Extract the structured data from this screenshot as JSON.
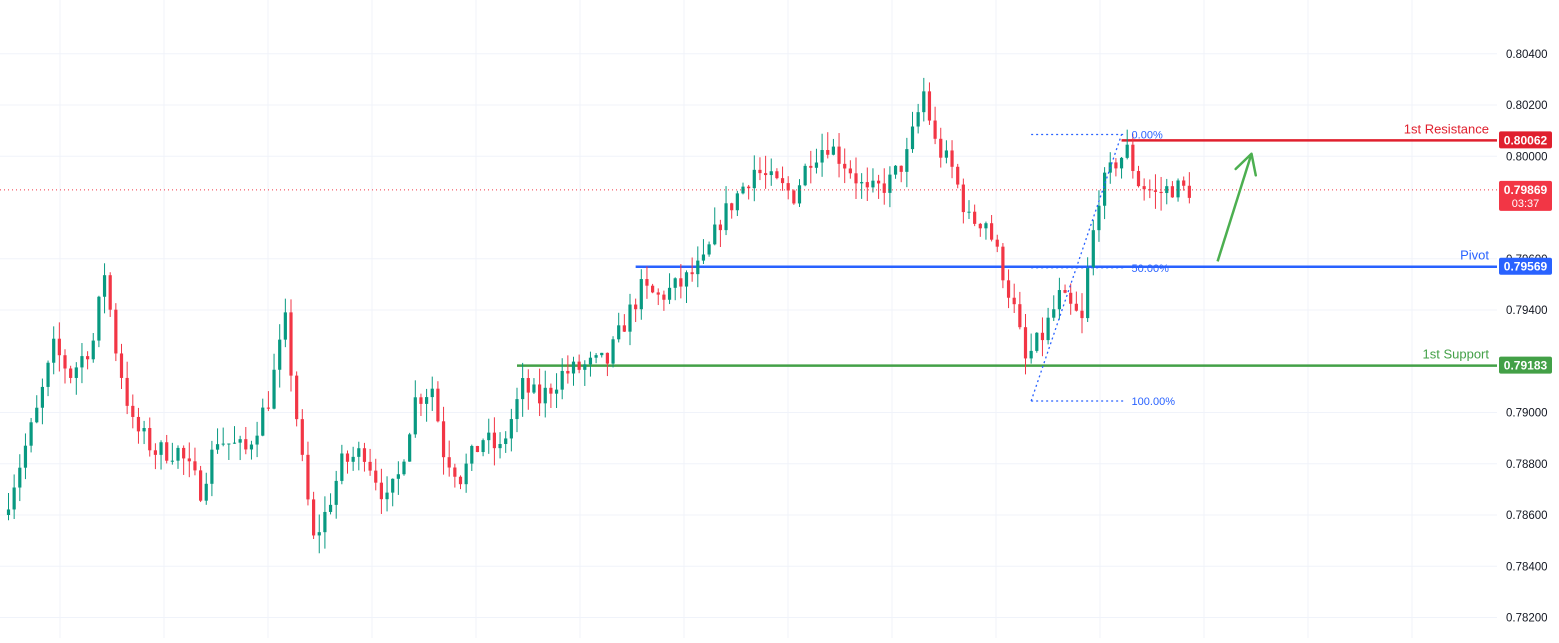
{
  "chart_data": {
    "type": "candlestick",
    "y_axis": {
      "position": "right",
      "ylim": [
        0.7812,
        0.8061
      ],
      "ticks": [
        0.804,
        0.802,
        0.8,
        0.796,
        0.794,
        0.79,
        0.788,
        0.786,
        0.784,
        0.782
      ],
      "tick_labels": [
        "0.80400",
        "0.80200",
        "0.80000",
        "0.79600",
        "0.79400",
        "0.79000",
        "0.78800",
        "0.78600",
        "0.78400",
        "0.78200"
      ]
    },
    "grid": true,
    "current_price": {
      "value": 0.79869,
      "label": "0.79869",
      "countdown": "03:37",
      "color": "#f23645"
    },
    "levels": [
      {
        "name": "1st Resistance",
        "value": 0.80062,
        "label": "0.80062",
        "color": "#e0202e",
        "start_index": 197
      },
      {
        "name": "Pivot",
        "value": 0.79569,
        "label": "0.79569",
        "color": "#2962ff",
        "start_index": 111
      },
      {
        "name": "1st Support",
        "value": 0.79183,
        "label": "0.79183",
        "color": "#43a047",
        "start_index": 90
      }
    ],
    "fibonacci": [
      {
        "label": "0.00%",
        "value": 0.80085
      },
      {
        "label": "50.00%",
        "value": 0.79565
      },
      {
        "label": "100.00%",
        "value": 0.79045
      }
    ],
    "fib_swing": {
      "low_index": 181,
      "low_value": 0.79045,
      "high_index": 197,
      "high_value": 0.80085
    },
    "projection_arrow": {
      "from_index": 214,
      "from_value": 0.7959,
      "to_index": 220,
      "to_value": 0.8001,
      "color": "#4caf50"
    },
    "candle_count": 210,
    "colors": {
      "up": "#089981",
      "down": "#f23645"
    },
    "anchors": [
      [
        0,
        0.786
      ],
      [
        3,
        0.788
      ],
      [
        6,
        0.79
      ],
      [
        9,
        0.7925
      ],
      [
        12,
        0.7915
      ],
      [
        16,
        0.7928
      ],
      [
        18,
        0.7955
      ],
      [
        20,
        0.7925
      ],
      [
        23,
        0.7895
      ],
      [
        27,
        0.7885
      ],
      [
        31,
        0.7885
      ],
      [
        35,
        0.787
      ],
      [
        38,
        0.789
      ],
      [
        43,
        0.7885
      ],
      [
        47,
        0.7905
      ],
      [
        50,
        0.7935
      ],
      [
        53,
        0.788
      ],
      [
        55,
        0.785
      ],
      [
        57,
        0.786
      ],
      [
        60,
        0.788
      ],
      [
        64,
        0.7885
      ],
      [
        68,
        0.7865
      ],
      [
        70,
        0.7875
      ],
      [
        73,
        0.7905
      ],
      [
        76,
        0.791
      ],
      [
        78,
        0.7885
      ],
      [
        81,
        0.7875
      ],
      [
        85,
        0.789
      ],
      [
        88,
        0.7885
      ],
      [
        92,
        0.791
      ],
      [
        95,
        0.7905
      ],
      [
        99,
        0.7915
      ],
      [
        103,
        0.7918
      ],
      [
        107,
        0.792
      ],
      [
        110,
        0.7935
      ],
      [
        113,
        0.7948
      ],
      [
        116,
        0.7945
      ],
      [
        120,
        0.795
      ],
      [
        124,
        0.7958
      ],
      [
        127,
        0.7975
      ],
      [
        130,
        0.7985
      ],
      [
        133,
        0.7995
      ],
      [
        136,
        0.799
      ],
      [
        140,
        0.7985
      ],
      [
        143,
        0.8
      ],
      [
        146,
        0.8005
      ],
      [
        150,
        0.7995
      ],
      [
        153,
        0.7985
      ],
      [
        157,
        0.799
      ],
      [
        160,
        0.8
      ],
      [
        163,
        0.8025
      ],
      [
        165,
        0.8005
      ],
      [
        168,
        0.7995
      ],
      [
        171,
        0.7975
      ],
      [
        174,
        0.7975
      ],
      [
        177,
        0.7955
      ],
      [
        179,
        0.794
      ],
      [
        181,
        0.792
      ],
      [
        184,
        0.793
      ],
      [
        187,
        0.7945
      ],
      [
        190,
        0.7938
      ],
      [
        191,
        0.7935
      ],
      [
        192,
        0.7955
      ],
      [
        194,
        0.7985
      ],
      [
        197,
        0.7998
      ],
      [
        199,
        0.8002
      ],
      [
        201,
        0.799
      ],
      [
        204,
        0.7985
      ],
      [
        207,
        0.7988
      ],
      [
        209,
        0.7987
      ]
    ]
  }
}
